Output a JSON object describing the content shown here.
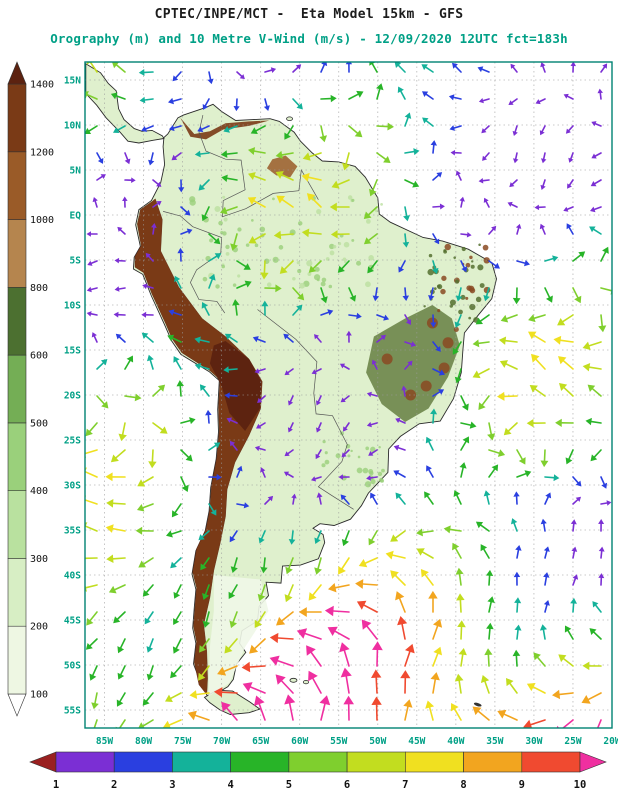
{
  "header": {
    "line1": "CPTEC/INPE/MCT -  Eta Model 15km - GFS",
    "line2": "Orography (m) and 10 Metre V-Wind (m/s) - 12/09/2020 12UTC fct=183h",
    "line1_color": "#1c1c1c",
    "line2_color": "#00a086"
  },
  "map": {
    "frame_color": "#008273",
    "grid_color": "#9a9a9a",
    "land_base": "#dff0cd",
    "coast_color": "#2b2b2b",
    "border_color": "#555555"
  },
  "axes": {
    "lat_labels": [
      "15N",
      "10N",
      "5N",
      "EQ",
      "5S",
      "10S",
      "15S",
      "20S",
      "25S",
      "30S",
      "35S",
      "40S",
      "45S",
      "50S",
      "55S"
    ],
    "lat_values": [
      15,
      10,
      5,
      0,
      -5,
      -10,
      -15,
      -20,
      -25,
      -30,
      -35,
      -40,
      -45,
      -50,
      -55
    ],
    "lon_labels": [
      "85W",
      "80W",
      "75W",
      "70W",
      "65W",
      "60W",
      "55W",
      "50W",
      "45W",
      "40W",
      "35W",
      "30W",
      "25W",
      "20W"
    ],
    "lon_values": [
      -85,
      -80,
      -75,
      -70,
      -65,
      -60,
      -55,
      -50,
      -45,
      -40,
      -35,
      -30,
      -25,
      -20
    ],
    "label_color": "#00a086"
  },
  "orography_colorbar": {
    "name": "Orography (m)",
    "labels": [
      "100",
      "200",
      "300",
      "400",
      "500",
      "600",
      "800",
      "1000",
      "1200",
      "1400"
    ],
    "segments_bottom_to_top": [
      "#ffffff",
      "#eef7e3",
      "#d7eec4",
      "#b9e19f",
      "#9ad07b",
      "#74ae55",
      "#4c7030",
      "#b5854e",
      "#9a5b28",
      "#7a3a16",
      "#5c2210"
    ],
    "label_color": "#111111"
  },
  "wind_colorbar": {
    "name": "10 Metre V-Wind (m/s)",
    "labels": [
      "1",
      "2",
      "3",
      "4",
      "5",
      "6",
      "7",
      "8",
      "9",
      "10"
    ],
    "segments_left_to_right": [
      "#9a2020",
      "#7b2fd4",
      "#2a3fe0",
      "#14b29a",
      "#28b428",
      "#7fcf2e",
      "#c2dd1f",
      "#f0e020",
      "#f2a51f",
      "#f04a30",
      "#ef2fa0"
    ],
    "label_color": "#111111"
  },
  "wind_field": {
    "seed": 42,
    "col_step": 28,
    "row_step": 27,
    "note": "wind vector arrows coloured by speed (m/s) per wind_colorbar scale"
  },
  "chart_data": {
    "type": "heatmap",
    "title": "CPTEC/INPE/MCT - Eta Model 15km - GFS",
    "subtitle": "Orography (m) and 10 Metre V-Wind (m/s) - 12/09/2020 12UTC fct=183h",
    "institution": "CPTEC/INPE/MCT",
    "model": "Eta Model 15km",
    "boundary_conditions": "GFS",
    "valid": "12/09/2020 12UTC",
    "forecast": "fct=183h",
    "region": "South America",
    "x_axis": {
      "label": "Longitude",
      "ticks": [
        "85W",
        "80W",
        "75W",
        "70W",
        "65W",
        "60W",
        "55W",
        "50W",
        "45W",
        "40W",
        "35W",
        "30W",
        "25W",
        "20W"
      ]
    },
    "y_axis": {
      "label": "Latitude",
      "ticks": [
        "15N",
        "10N",
        "5N",
        "EQ",
        "5S",
        "10S",
        "15S",
        "20S",
        "25S",
        "30S",
        "35S",
        "40S",
        "45S",
        "50S",
        "55S"
      ]
    },
    "orography_scale_m": [
      100,
      200,
      300,
      400,
      500,
      600,
      800,
      1000,
      1200,
      1400
    ],
    "wind_speed_scale_ms": [
      1,
      2,
      3,
      4,
      5,
      6,
      7,
      8,
      9,
      10
    ],
    "overlay": "10 m wind vectors; strongest (8-11+ m/s, orange/red/magenta) over Southern Ocean and Patagonia, weak (1-5 m/s, purple/blue/teal/green) over Amazonia and tropical Atlantic",
    "grid": "5 degree dotted lat/lon grid"
  }
}
